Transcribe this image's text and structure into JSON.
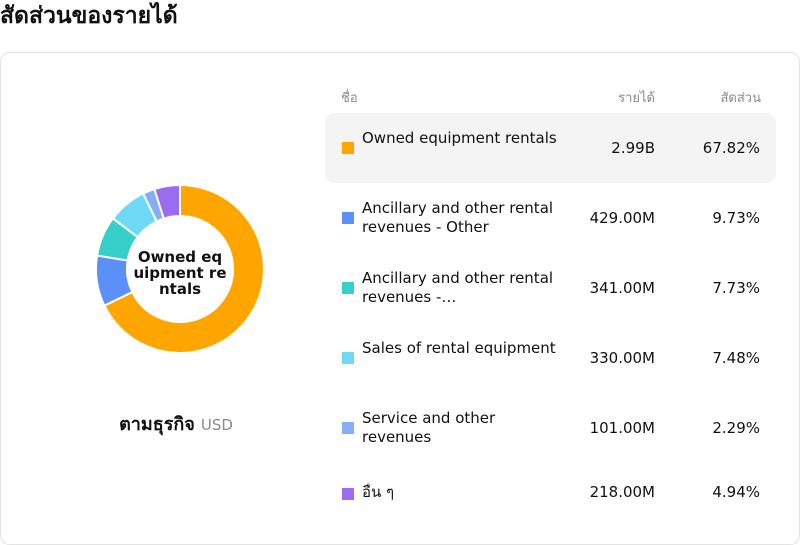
{
  "page": {
    "title": "สัดส่วนของรายได้"
  },
  "donut": {
    "center_label": [
      "Owned eq",
      "uipment re",
      "ntals"
    ],
    "caption": "ตามธุรกิจ",
    "unit": "USD"
  },
  "table": {
    "headers": {
      "name": "ชื่อ",
      "revenue": "รายได้",
      "share": "สัดส่วน"
    },
    "rows": [
      {
        "name": "Owned equipment rentals",
        "revenue": "2.99B",
        "share": "67.82%",
        "color": "#FFA500"
      },
      {
        "name": "Ancillary and other rental revenues - Other",
        "revenue": "429.00M",
        "share": "9.73%",
        "color": "#5B8FF9"
      },
      {
        "name": "Ancillary and other rental revenues -…",
        "revenue": "341.00M",
        "share": "7.73%",
        "color": "#36CFC9"
      },
      {
        "name": "Sales of rental equipment",
        "revenue": "330.00M",
        "share": "7.48%",
        "color": "#6DD9F5"
      },
      {
        "name": "Service and other revenues",
        "revenue": "101.00M",
        "share": "2.29%",
        "color": "#84AEF8"
      },
      {
        "name": "อื่น ๆ",
        "revenue": "218.00M",
        "share": "4.94%",
        "color": "#9B6CF2"
      }
    ]
  },
  "chart_data": {
    "type": "pie",
    "title": "สัดส่วนของรายได้",
    "subtitle": "ตามธุรกิจ",
    "unit": "USD",
    "categories": [
      "Owned equipment rentals",
      "Ancillary and other rental revenues - Other",
      "Ancillary and other rental revenues -…",
      "Sales of rental equipment",
      "Service and other revenues",
      "อื่น ๆ"
    ],
    "values": [
      67.82,
      9.73,
      7.73,
      7.48,
      2.29,
      4.94
    ],
    "revenues": [
      "2.99B",
      "429.00M",
      "341.00M",
      "330.00M",
      "101.00M",
      "218.00M"
    ],
    "colors": [
      "#FFA500",
      "#5B8FF9",
      "#36CFC9",
      "#6DD9F5",
      "#84AEF8",
      "#9B6CF2"
    ],
    "legend": "right"
  }
}
